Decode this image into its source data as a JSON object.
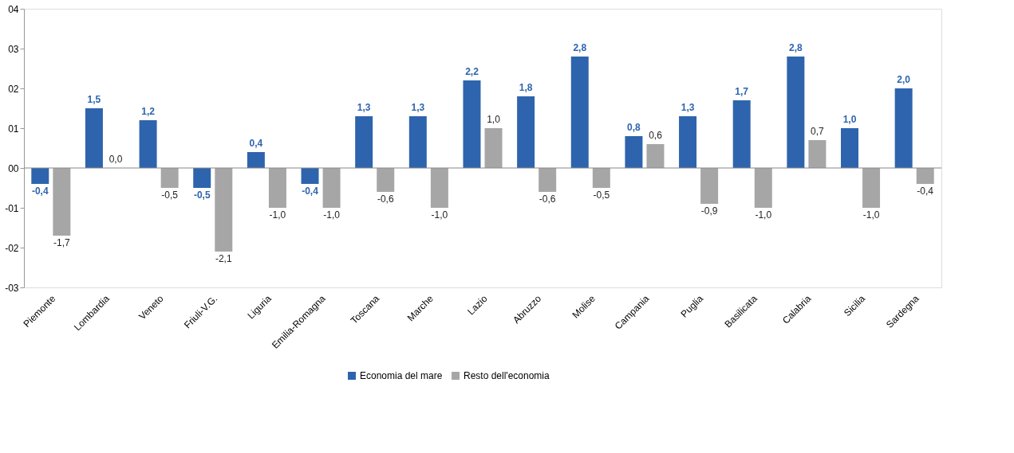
{
  "chart_data": {
    "type": "bar",
    "categories": [
      "Piemonte",
      "Lombardia",
      "Veneto",
      "Friuli-V.G.",
      "Liguria",
      "Emilia-Romagna",
      "Toscana",
      "Marche",
      "Lazio",
      "Abruzzo",
      "Molise",
      "Campania",
      "Puglia",
      "Basilicata",
      "Calabria",
      "Sicilia",
      "Sardegna"
    ],
    "series": [
      {
        "name": "Economia del mare",
        "color": "#2e64ad",
        "values": [
          -0.4,
          1.5,
          1.2,
          -0.5,
          0.4,
          -0.4,
          1.3,
          1.3,
          2.2,
          1.8,
          2.8,
          0.8,
          1.3,
          1.7,
          2.8,
          1.0,
          2.0
        ],
        "value_labels": [
          "-0,4",
          "1,5",
          "1,2",
          "-0,5",
          "0,4",
          "-0,4",
          "1,3",
          "1,3",
          "2,2",
          "1,8",
          "2,8",
          "0,8",
          "1,3",
          "1,7",
          "2,8",
          "1,0",
          "2,0"
        ]
      },
      {
        "name": "Resto dell'economia",
        "color": "#a6a6a6",
        "values": [
          -1.7,
          0.0,
          -0.5,
          -2.1,
          -1.0,
          -1.0,
          -0.6,
          -1.0,
          1.0,
          -0.6,
          -0.5,
          0.6,
          -0.9,
          -1.0,
          0.7,
          -1.0,
          -0.4
        ],
        "value_labels": [
          "-1,7",
          "0,0",
          "-0,5",
          "-2,1",
          "-1,0",
          "-1,0",
          "-0,6",
          "-1,0",
          "1,0",
          "-0,6",
          "-0,5",
          "0,6",
          "-0,9",
          "-1,0",
          "0,7",
          "-1,0",
          "-0,4"
        ]
      }
    ],
    "ylim": [
      -3,
      4
    ],
    "yticks": [
      {
        "value": -3,
        "label": "-03"
      },
      {
        "value": -2,
        "label": "-02"
      },
      {
        "value": -1,
        "label": "-01"
      },
      {
        "value": 0,
        "label": "00"
      },
      {
        "value": 1,
        "label": "01"
      },
      {
        "value": 2,
        "label": "02"
      },
      {
        "value": 3,
        "label": "03"
      },
      {
        "value": 4,
        "label": "04"
      }
    ],
    "legend": "bottom"
  }
}
